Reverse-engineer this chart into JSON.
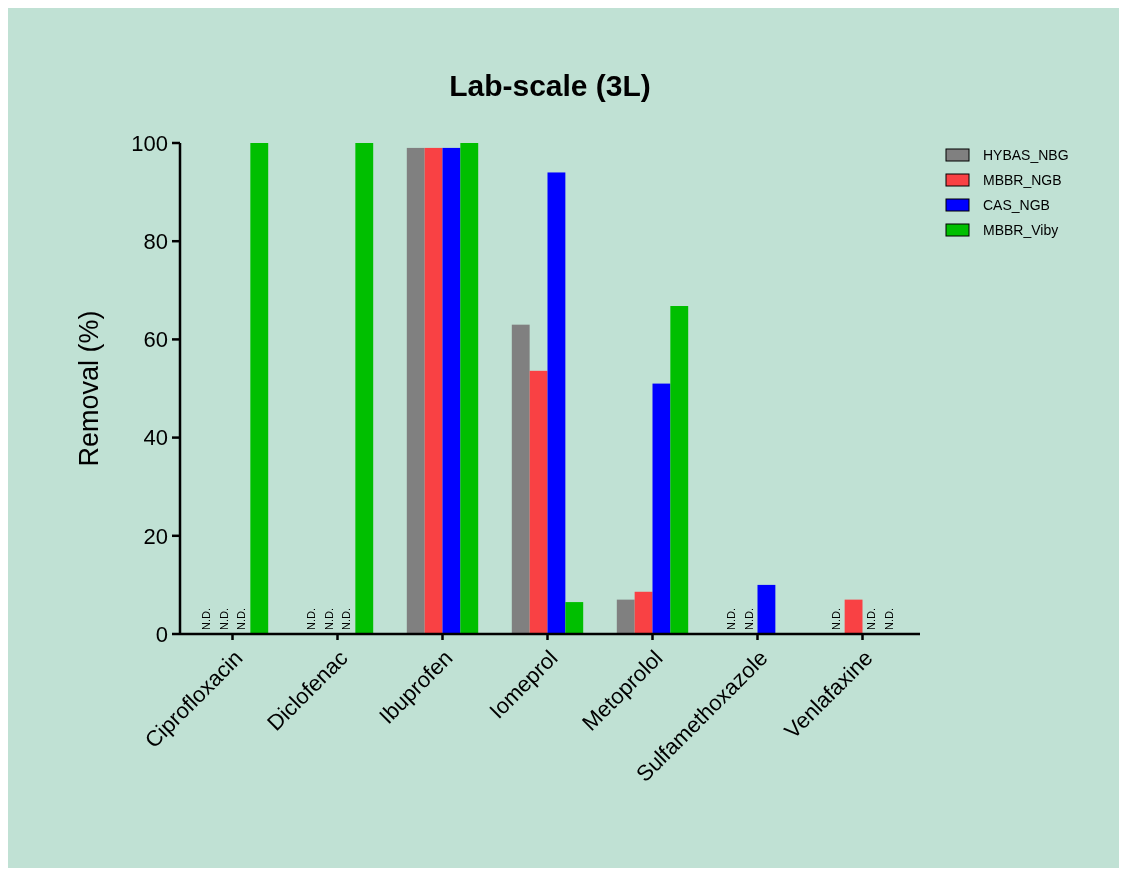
{
  "chart_data": {
    "type": "bar",
    "title": "Lab-scale (3L)",
    "ylabel": "Removal (%)",
    "categories": [
      "Ciprofloxacin",
      "Diclofenac",
      "Ibuprofen",
      "Iomeprol",
      "Metoprolol",
      "Sulfamethoxazole",
      "Venlafaxine"
    ],
    "series": [
      {
        "name": "HYBAS_NBG",
        "color": "#808080",
        "values": [
          null,
          null,
          99,
          63,
          7,
          null,
          null
        ],
        "value_labels": [
          "N.D.",
          "N.D.",
          null,
          null,
          null,
          "N.D.",
          "N.D."
        ]
      },
      {
        "name": "MBBR_NGB",
        "color": "#f94144",
        "values": [
          null,
          null,
          99,
          53.6,
          8.6,
          null,
          7
        ],
        "value_labels": [
          "N.D.",
          "N.D.",
          null,
          null,
          null,
          "N.D.",
          null
        ]
      },
      {
        "name": "CAS_NGB",
        "color": "#0000ff",
        "values": [
          null,
          null,
          99,
          94,
          51,
          10,
          null
        ],
        "value_labels": [
          "N.D.",
          "N.D.",
          null,
          null,
          null,
          null,
          "N.D."
        ]
      },
      {
        "name": "MBBR_Viby",
        "color": "#00bf00",
        "values": [
          100,
          100,
          100,
          6.5,
          66.8,
          null,
          null
        ],
        "value_labels": [
          null,
          null,
          null,
          null,
          null,
          null,
          "N.D."
        ]
      }
    ],
    "ylim": [
      0,
      100
    ],
    "yticks": [
      0,
      20,
      40,
      60,
      80,
      100
    ],
    "grid": false,
    "legend": "top right"
  }
}
